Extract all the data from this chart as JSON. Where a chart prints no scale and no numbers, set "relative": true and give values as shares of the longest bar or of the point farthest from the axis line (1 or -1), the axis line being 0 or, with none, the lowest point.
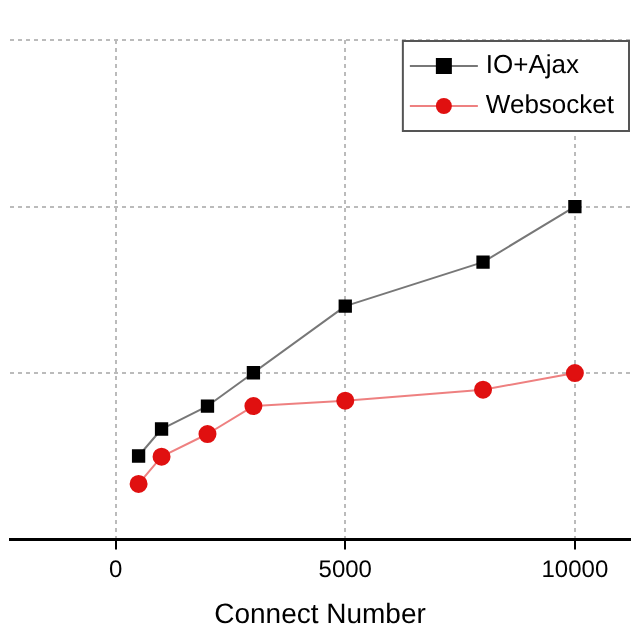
{
  "chart_data": {
    "type": "line",
    "xlabel": "Connect Number",
    "relative": true,
    "xlim": [
      -2300,
      11200
    ],
    "xticks": [
      0,
      5000,
      10000
    ],
    "grid": true,
    "legend": "top right",
    "series": [
      {
        "name": "IO+Ajax",
        "color": "#000000",
        "marker": "square",
        "x": [
          500,
          1000,
          2000,
          3000,
          5000,
          8000,
          10000
        ],
        "values": [
          0.251,
          0.332,
          0.401,
          0.501,
          0.701,
          0.833,
          1
        ]
      },
      {
        "name": "Websocket",
        "color": "#e01010",
        "marker": "circle",
        "x": [
          500,
          1000,
          2000,
          3000,
          5000,
          8000,
          10000
        ],
        "values": [
          0.167,
          0.249,
          0.317,
          0.401,
          0.417,
          0.45,
          0.5
        ]
      }
    ]
  }
}
